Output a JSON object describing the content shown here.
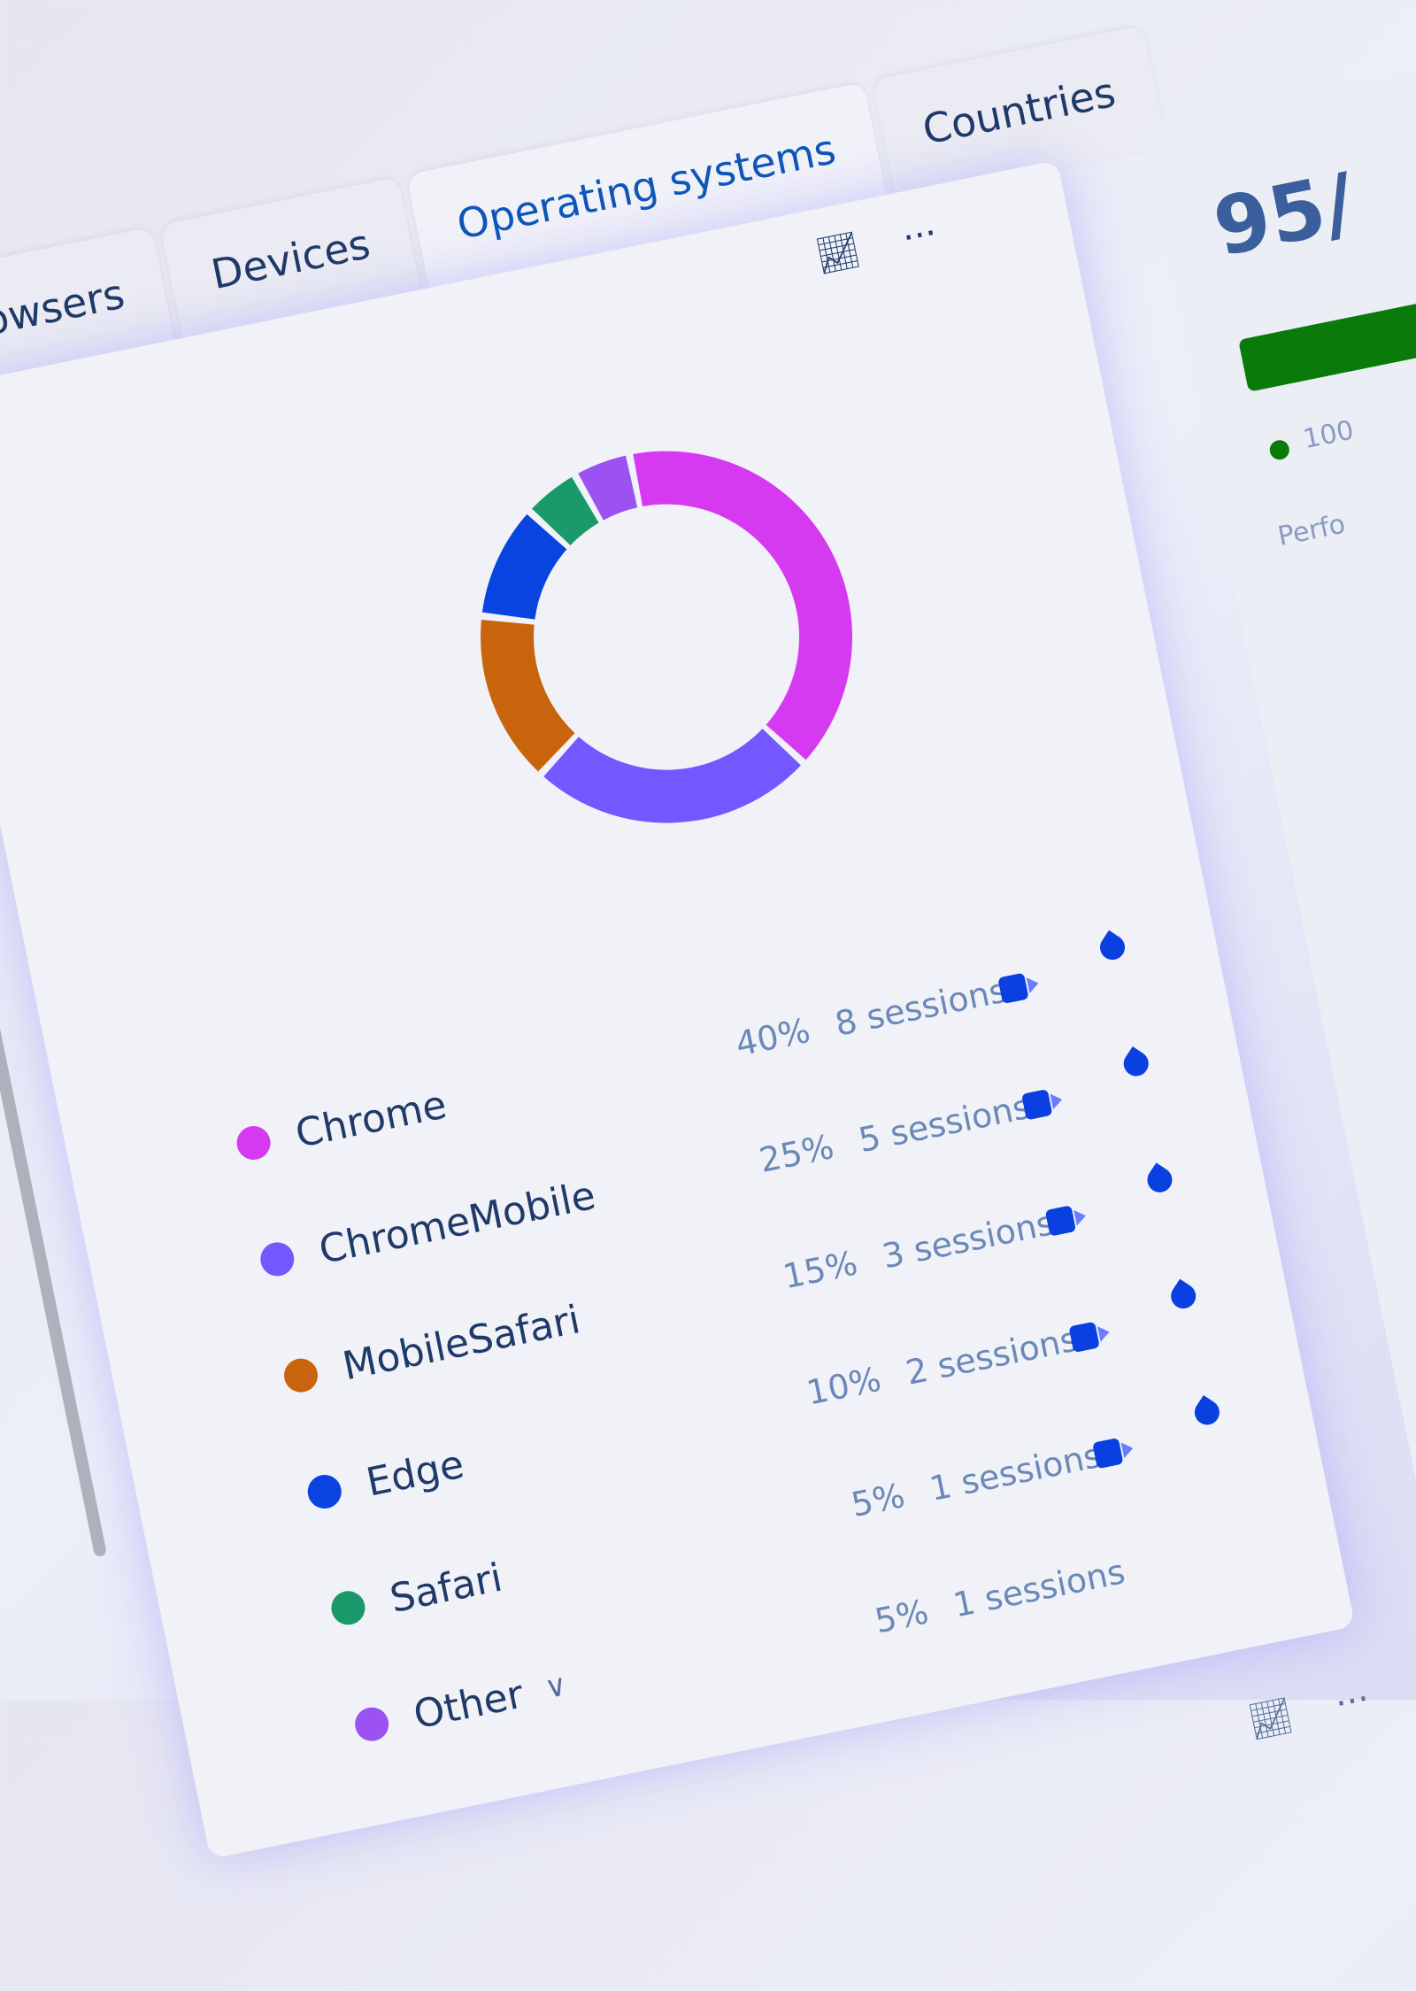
{
  "tabs": [
    {
      "label": "Browsers"
    },
    {
      "label": "Devices"
    },
    {
      "label": "Operating systems",
      "active": true
    },
    {
      "label": "Countries"
    }
  ],
  "toolbar": {
    "chart_icon": "chart-export-icon",
    "more_icon": "more-dots-icon"
  },
  "side_panel": {
    "value": "95/",
    "bar_color": "#0a7a0a",
    "legend_text": "100",
    "caption": "Perfo"
  },
  "chart_data": {
    "type": "pie",
    "donut": true,
    "categories": [
      "Chrome",
      "ChromeMobile",
      "MobileSafari",
      "Edge",
      "Safari",
      "Other"
    ],
    "values": [
      40,
      25,
      15,
      10,
      5,
      5
    ],
    "colors": [
      "#d63af0",
      "#7357ff",
      "#c8650c",
      "#0a44e0",
      "#1a9a6a",
      "#9b52f0"
    ]
  },
  "rows": [
    {
      "name": "Chrome",
      "pct": "40%",
      "sessions": "8 sessions",
      "icons": true
    },
    {
      "name": "ChromeMobile",
      "pct": "25%",
      "sessions": "5 sessions",
      "icons": true
    },
    {
      "name": "MobileSafari",
      "pct": "15%",
      "sessions": "3 sessions",
      "icons": true
    },
    {
      "name": "Edge",
      "pct": "10%",
      "sessions": "2 sessions",
      "icons": true
    },
    {
      "name": "Safari",
      "pct": "5%",
      "sessions": "1 sessions",
      "icons": true
    },
    {
      "name": "Other",
      "pct": "5%",
      "sessions": "1 sessions",
      "icons": false,
      "expandable": true
    }
  ]
}
